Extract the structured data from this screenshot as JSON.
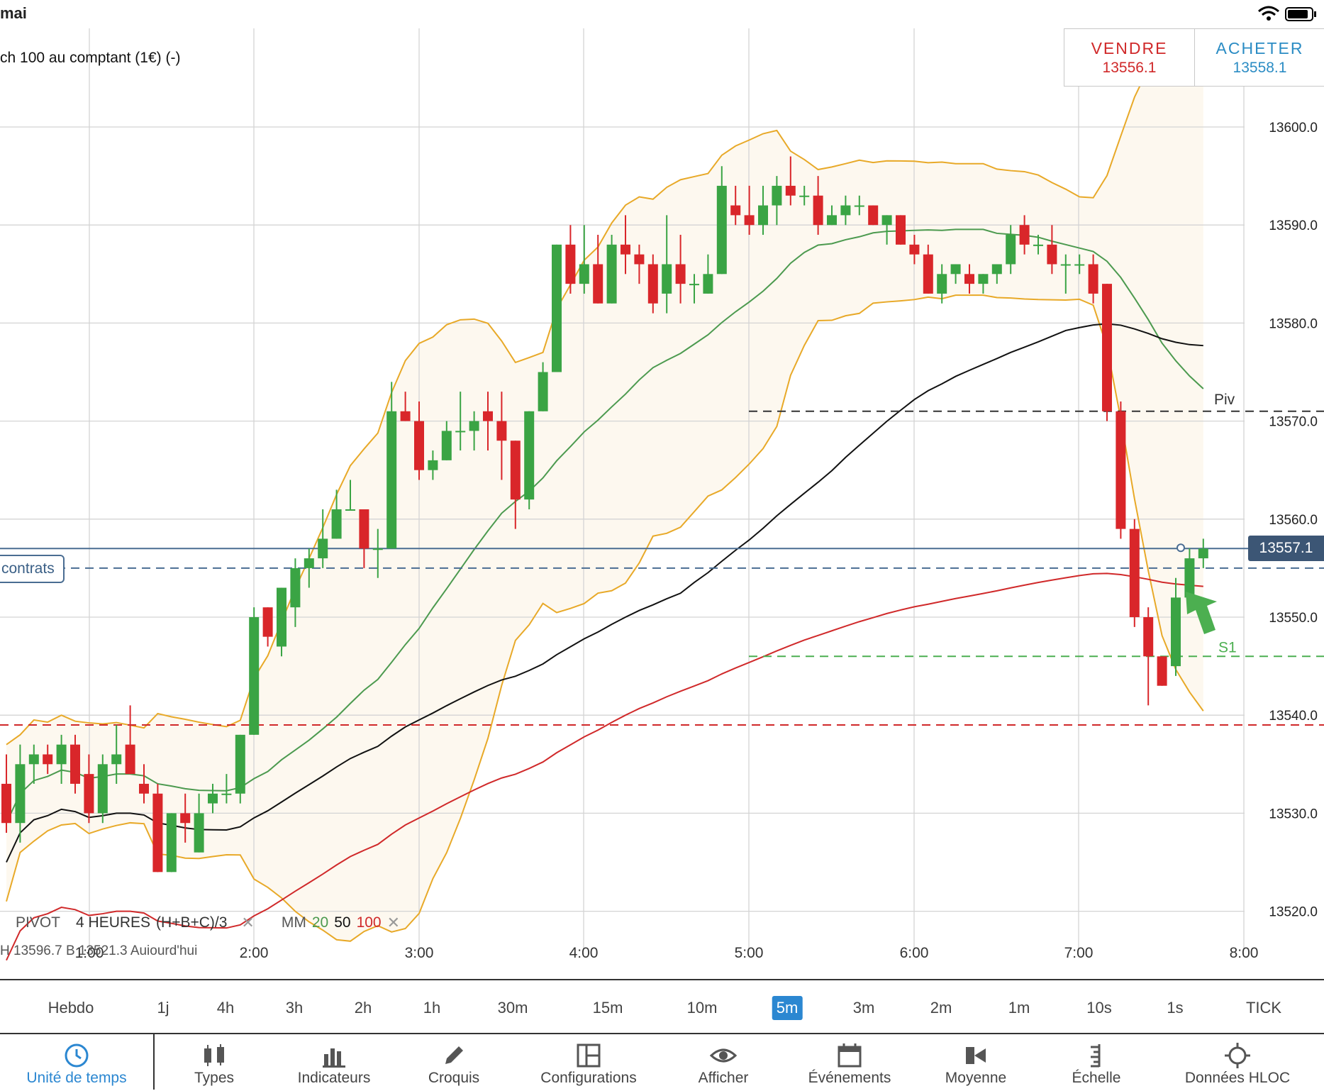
{
  "status": {
    "time": "mai"
  },
  "instrument": {
    "name": "ch 100 au comptant (1€) (-)"
  },
  "trade": {
    "sell_label": "VENDRE",
    "sell_price": "13556.1",
    "buy_label": "ACHETER",
    "buy_price": "13558.1"
  },
  "price_axis": {
    "labels": [
      "13600.0",
      "13590.0",
      "13580.0",
      "13570.0",
      "13560.0",
      "13550.0",
      "13540.0",
      "13530.0",
      "13520.0"
    ],
    "current_price": "13557.1"
  },
  "time_axis": {
    "labels": [
      "1:00",
      "2:00",
      "3:00",
      "4:00",
      "5:00",
      "6:00",
      "7:00",
      "8:00"
    ]
  },
  "position_tag": "contrats",
  "pivot_labels": {
    "piv": "Piv",
    "s1": "S1"
  },
  "legend": {
    "pivot": "PIVOT",
    "period": "4 HEURES",
    "formula": "(H+B+C)/3",
    "mm": "MM",
    "mm20": "20",
    "mm50": "50",
    "mm100": "100",
    "close": "✕"
  },
  "info_line": "H 13596.7   B 13521.3   Aujourd'hui",
  "timeframes": [
    "Hebdo",
    "1j",
    "4h",
    "3h",
    "2h",
    "1h",
    "30m",
    "15m",
    "10m",
    "5m",
    "3m",
    "2m",
    "1m",
    "10s",
    "1s",
    "TICK"
  ],
  "active_timeframe": "5m",
  "toolbar": {
    "items": [
      "Unité de temps",
      "Types",
      "Indicateurs",
      "Croquis",
      "Configurations",
      "Afficher",
      "Événements",
      "Moyenne",
      "Échelle",
      "Données HLOC"
    ],
    "icons": [
      "clock-icon",
      "candles-icon",
      "bar-chart-icon",
      "pencil-icon",
      "layout-icon",
      "eye-icon",
      "calendar-icon",
      "average-icon",
      "scale-icon",
      "crosshair-icon"
    ]
  },
  "colors": {
    "up": "#3aa444",
    "down": "#d9262a",
    "bollinger": "#e8a928",
    "ma20": "#4c9a4f",
    "ma50": "#111111",
    "ma100": "#d0292a",
    "accent": "#2b87d1"
  },
  "chart_data": {
    "type": "candlestick",
    "x_axis_labels": [
      "1:00",
      "2:00",
      "3:00",
      "4:00",
      "5:00",
      "6:00",
      "7:00",
      "8:00"
    ],
    "y_axis": {
      "min": 13515,
      "max": 13606,
      "ticks": [
        13520,
        13530,
        13540,
        13550,
        13560,
        13570,
        13580,
        13590,
        13600
      ]
    },
    "candles": [
      [
        13533,
        13536,
        13528,
        13529
      ],
      [
        13529,
        13537,
        13527,
        13535
      ],
      [
        13535,
        13537,
        13533,
        13536
      ],
      [
        13536,
        13537,
        13534,
        13535
      ],
      [
        13535,
        13538,
        13533,
        13537
      ],
      [
        13537,
        13538,
        13532,
        13533
      ],
      [
        13534,
        13536,
        13529,
        13530
      ],
      [
        13530,
        13536,
        13529,
        13535
      ],
      [
        13535,
        13539,
        13533,
        13536
      ],
      [
        13537,
        13541,
        13534,
        13534
      ],
      [
        13533,
        13535,
        13531,
        13532
      ],
      [
        13532,
        13533,
        13524,
        13524
      ],
      [
        13524,
        13530,
        13524,
        13530
      ],
      [
        13530,
        13532,
        13527,
        13529
      ],
      [
        13526,
        13532,
        13526,
        13530
      ],
      [
        13531,
        13533,
        13530,
        13532
      ],
      [
        13532,
        13534,
        13531,
        13532
      ],
      [
        13532,
        13538,
        13531,
        13538
      ],
      [
        13538,
        13551,
        13538,
        13550
      ],
      [
        13551,
        13551,
        13547,
        13548
      ],
      [
        13547,
        13553,
        13546,
        13553
      ],
      [
        13551,
        13556,
        13549,
        13555
      ],
      [
        13555,
        13557,
        13553,
        13556
      ],
      [
        13556,
        13561,
        13555,
        13558
      ],
      [
        13558,
        13563,
        13558,
        13561
      ],
      [
        13561,
        13564,
        13561,
        13561
      ],
      [
        13561,
        13561,
        13555,
        13557
      ],
      [
        13557,
        13559,
        13554,
        13557
      ],
      [
        13557,
        13574,
        13557,
        13571
      ],
      [
        13571,
        13573,
        13570,
        13570
      ],
      [
        13570,
        13572,
        13564,
        13565
      ],
      [
        13565,
        13567,
        13564,
        13566
      ],
      [
        13566,
        13570,
        13566,
        13569
      ],
      [
        13569,
        13573,
        13567,
        13569
      ],
      [
        13569,
        13571,
        13567,
        13570
      ],
      [
        13571,
        13573,
        13567,
        13570
      ],
      [
        13570,
        13573,
        13564,
        13568
      ],
      [
        13568,
        13568,
        13559,
        13562
      ],
      [
        13562,
        13571,
        13561,
        13571
      ],
      [
        13571,
        13576,
        13571,
        13575
      ],
      [
        13575,
        13588,
        13575,
        13588
      ],
      [
        13588,
        13590,
        13583,
        13584
      ],
      [
        13584,
        13590,
        13583,
        13586
      ],
      [
        13586,
        13589,
        13582,
        13582
      ],
      [
        13582,
        13589,
        13582,
        13588
      ],
      [
        13588,
        13591,
        13585,
        13587
      ],
      [
        13587,
        13588,
        13584,
        13586
      ],
      [
        13586,
        13587,
        13581,
        13582
      ],
      [
        13583,
        13591,
        13581,
        13586
      ],
      [
        13586,
        13589,
        13582,
        13584
      ],
      [
        13584,
        13585,
        13582,
        13584
      ],
      [
        13583,
        13587,
        13583,
        13585
      ],
      [
        13585,
        13596,
        13585,
        13594
      ],
      [
        13592,
        13594,
        13590,
        13591
      ],
      [
        13591,
        13594,
        13589,
        13590
      ],
      [
        13590,
        13594,
        13589,
        13592
      ],
      [
        13592,
        13595,
        13590,
        13594
      ],
      [
        13594,
        13597,
        13592,
        13593
      ],
      [
        13593,
        13594,
        13592,
        13593
      ],
      [
        13593,
        13595,
        13589,
        13590
      ],
      [
        13590,
        13592,
        13590,
        13591
      ],
      [
        13591,
        13593,
        13590,
        13592
      ],
      [
        13592,
        13593,
        13591,
        13592
      ],
      [
        13592,
        13592,
        13590,
        13590
      ],
      [
        13590,
        13591,
        13588,
        13591
      ],
      [
        13591,
        13591,
        13588,
        13588
      ],
      [
        13588,
        13589,
        13586,
        13587
      ],
      [
        13587,
        13588,
        13583,
        13583
      ],
      [
        13583,
        13586,
        13582,
        13585
      ],
      [
        13585,
        13586,
        13584,
        13586
      ],
      [
        13585,
        13586,
        13583,
        13584
      ],
      [
        13584,
        13585,
        13583,
        13585
      ],
      [
        13585,
        13586,
        13584,
        13586
      ],
      [
        13586,
        13590,
        13585,
        13589
      ],
      [
        13590,
        13591,
        13587,
        13588
      ],
      [
        13588,
        13589,
        13587,
        13588
      ],
      [
        13588,
        13590,
        13585,
        13586
      ],
      [
        13586,
        13587,
        13583,
        13586
      ],
      [
        13586,
        13587,
        13585,
        13586
      ],
      [
        13586,
        13587,
        13582,
        13583
      ],
      [
        13584,
        13584,
        13570,
        13571
      ],
      [
        13571,
        13572,
        13558,
        13559
      ],
      [
        13559,
        13560,
        13549,
        13550
      ],
      [
        13550,
        13551,
        13541,
        13546
      ],
      [
        13546,
        13546,
        13543,
        13543
      ],
      [
        13545,
        13554,
        13544,
        13552
      ],
      [
        13552,
        13557,
        13552,
        13556
      ],
      [
        13556,
        13558,
        13555,
        13557
      ]
    ],
    "series": [
      {
        "name": "20",
        "color": "#4c9a4f"
      },
      {
        "name": "50",
        "color": "#111111"
      },
      {
        "name": "100",
        "color": "#d0292a"
      }
    ],
    "bollinger": {
      "color": "#e8a928"
    },
    "levels": [
      {
        "name": "Piv",
        "price": 13571,
        "style": "dashed",
        "color": "#333333"
      },
      {
        "name": "S1",
        "price": 13546,
        "style": "dashed",
        "color": "#4caf50"
      },
      {
        "name": "",
        "price": 13539,
        "style": "dashed",
        "color": "#d0292a"
      },
      {
        "name": "",
        "price": 13555,
        "style": "dashed",
        "color": "#4a6d92"
      },
      {
        "name": "",
        "price": 13557,
        "style": "solid",
        "color": "#4a6d92"
      }
    ]
  }
}
